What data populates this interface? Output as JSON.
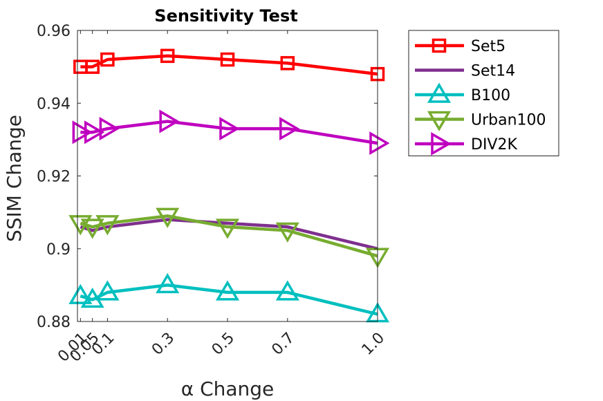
{
  "chart_data": {
    "type": "line",
    "title": "Sensitivity Test",
    "xlabel": "α Change",
    "ylabel": "SSIM Change",
    "x": [
      0.01,
      0.05,
      0.1,
      0.3,
      0.5,
      0.7,
      1.0
    ],
    "x_tick_labels": [
      "0.01",
      "0.05",
      "0.1",
      "0.3",
      "0.5",
      "0.7",
      "1.0"
    ],
    "xlim": [
      0,
      1.0
    ],
    "ylim": [
      0.88,
      0.96
    ],
    "y_ticks": [
      0.88,
      0.9,
      0.92,
      0.94,
      0.96
    ],
    "y_tick_labels": [
      "0.88",
      "0.9",
      "0.92",
      "0.94",
      "0.96"
    ],
    "grid": false,
    "legend_position": "outside-top-right",
    "series": [
      {
        "name": "Set5",
        "color": "#ff0000",
        "marker": "square",
        "values": [
          0.95,
          0.95,
          0.952,
          0.953,
          0.952,
          0.951,
          0.948
        ]
      },
      {
        "name": "Set14",
        "color": "#7e2f8e",
        "marker": "none",
        "values": [
          0.906,
          0.905,
          0.906,
          0.908,
          0.907,
          0.906,
          0.9
        ]
      },
      {
        "name": "B100",
        "color": "#00bfbf",
        "marker": "triangle-up",
        "values": [
          0.887,
          0.886,
          0.888,
          0.89,
          0.888,
          0.888,
          0.882
        ]
      },
      {
        "name": "Urban100",
        "color": "#77ac30",
        "marker": "triangle-down",
        "values": [
          0.907,
          0.906,
          0.907,
          0.909,
          0.906,
          0.905,
          0.898
        ]
      },
      {
        "name": "DIV2K",
        "color": "#bf00bf",
        "marker": "triangle-right",
        "values": [
          0.932,
          0.932,
          0.933,
          0.935,
          0.933,
          0.933,
          0.929
        ]
      }
    ]
  }
}
